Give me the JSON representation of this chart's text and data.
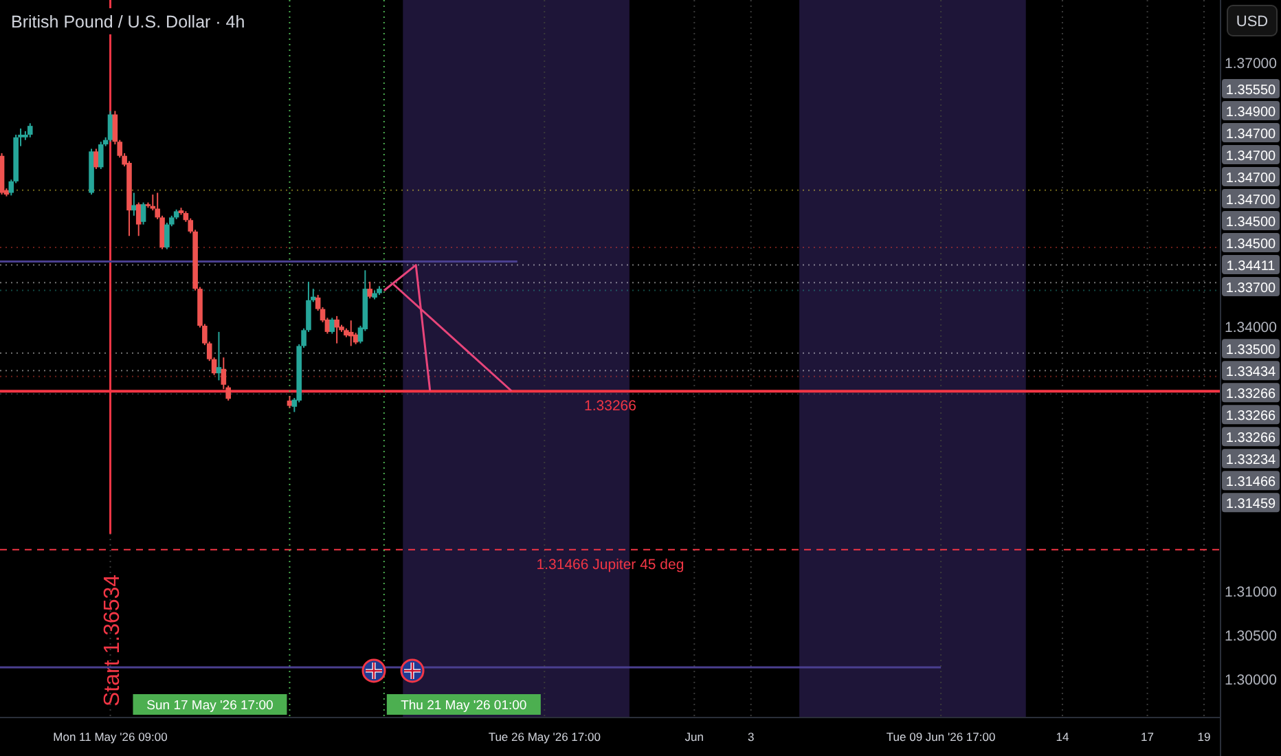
{
  "chart_data": {
    "type": "candlestick",
    "title": "British Pound / U.S. Dollar · 4h",
    "ylabel": "USD",
    "x": [
      "2026-05-07T13:00",
      "2026-05-07T17:00",
      "2026-05-07T21:00",
      "2026-05-08T01:00",
      "2026-05-08T05:00",
      "2026-05-08T09:00",
      "2026-05-08T13:00",
      "2026-05-10T17:00",
      "2026-05-10T21:00",
      "2026-05-11T01:00",
      "2026-05-11T05:00",
      "2026-05-11T09:00",
      "2026-05-11T13:00",
      "2026-05-11T17:00",
      "2026-05-11T21:00",
      "2026-05-12T01:00",
      "2026-05-12T05:00",
      "2026-05-12T09:00",
      "2026-05-12T13:00",
      "2026-05-12T17:00",
      "2026-05-12T21:00",
      "2026-05-13T01:00",
      "2026-05-13T05:00",
      "2026-05-13T09:00",
      "2026-05-13T13:00",
      "2026-05-13T17:00",
      "2026-05-13T21:00",
      "2026-05-14T01:00",
      "2026-05-14T05:00",
      "2026-05-14T09:00",
      "2026-05-14T13:00",
      "2026-05-14T17:00",
      "2026-05-14T21:00",
      "2026-05-15T01:00",
      "2026-05-15T05:00",
      "2026-05-15T09:00",
      "2026-05-15T13:00",
      "2026-05-17T17:00",
      "2026-05-17T21:00",
      "2026-05-18T01:00",
      "2026-05-18T05:00",
      "2026-05-18T09:00",
      "2026-05-18T13:00",
      "2026-05-18T17:00",
      "2026-05-18T21:00",
      "2026-05-19T01:00",
      "2026-05-19T05:00",
      "2026-05-19T09:00",
      "2026-05-19T13:00",
      "2026-05-19T17:00",
      "2026-05-19T21:00",
      "2026-05-20T01:00",
      "2026-05-20T05:00",
      "2026-05-20T09:00",
      "2026-05-20T13:00",
      "2026-05-20T17:00",
      "2026-05-20T21:00"
    ],
    "ohlc": [
      [
        1.3594,
        1.3597,
        1.355,
        1.3552
      ],
      [
        1.3555,
        1.3557,
        1.3548,
        1.355
      ],
      [
        1.3552,
        1.3567,
        1.3549,
        1.3565
      ],
      [
        1.3565,
        1.3618,
        1.3563,
        1.3615
      ],
      [
        1.3615,
        1.3625,
        1.3605,
        1.3618
      ],
      [
        1.3615,
        1.3622,
        1.3612,
        1.3618
      ],
      [
        1.3618,
        1.3631,
        1.3615,
        1.3628
      ],
      [
        1.3552,
        1.3602,
        1.355,
        1.3599
      ],
      [
        1.3599,
        1.3602,
        1.3579,
        1.3581
      ],
      [
        1.3581,
        1.361,
        1.3579,
        1.3607
      ],
      [
        1.3607,
        1.3615,
        1.3605,
        1.3612
      ],
      [
        1.3612,
        1.3645,
        1.361,
        1.3641
      ],
      [
        1.3641,
        1.3645,
        1.3607,
        1.361
      ],
      [
        1.361,
        1.3612,
        1.3592,
        1.3594
      ],
      [
        1.3594,
        1.3597,
        1.3582,
        1.3584
      ],
      [
        1.3586,
        1.3588,
        1.3503,
        1.3532
      ],
      [
        1.3532,
        1.3552,
        1.3526,
        1.3538
      ],
      [
        1.3539,
        1.3541,
        1.3503,
        1.3516
      ],
      [
        1.3519,
        1.3541,
        1.3516,
        1.3539
      ],
      [
        1.3539,
        1.3541,
        1.3535,
        1.3537
      ],
      [
        1.3537,
        1.355,
        1.3532,
        1.3534
      ],
      [
        1.3534,
        1.3552,
        1.3522,
        1.3524
      ],
      [
        1.3524,
        1.3526,
        1.3488,
        1.349
      ],
      [
        1.349,
        1.3518,
        1.3488,
        1.3516
      ],
      [
        1.3516,
        1.3526,
        1.3514,
        1.3524
      ],
      [
        1.3524,
        1.3533,
        1.3522,
        1.3531
      ],
      [
        1.3532,
        1.3535,
        1.3527,
        1.3529
      ],
      [
        1.3529,
        1.3531,
        1.3519,
        1.3521
      ],
      [
        1.3521,
        1.3523,
        1.3506,
        1.3508
      ],
      [
        1.3508,
        1.351,
        1.3441,
        1.3443
      ],
      [
        1.3443,
        1.3445,
        1.3399,
        1.3401
      ],
      [
        1.3401,
        1.3403,
        1.3379,
        1.3381
      ],
      [
        1.3381,
        1.3383,
        1.3361,
        1.3363
      ],
      [
        1.3363,
        1.3365,
        1.3345,
        1.3347
      ],
      [
        1.3347,
        1.3394,
        1.3339,
        1.3354
      ],
      [
        1.3352,
        1.3365,
        1.3329,
        1.3334
      ],
      [
        1.3331,
        1.3333,
        1.3316,
        1.3318
      ],
      [
        1.3316,
        1.3321,
        1.3308,
        1.331
      ],
      [
        1.3309,
        1.3319,
        1.3303,
        1.3317
      ],
      [
        1.3316,
        1.338,
        1.3314,
        1.3378
      ],
      [
        1.3378,
        1.3398,
        1.3376,
        1.3396
      ],
      [
        1.3396,
        1.3451,
        1.3394,
        1.343
      ],
      [
        1.343,
        1.3443,
        1.3428,
        1.3434
      ],
      [
        1.3433,
        1.3436,
        1.3418,
        1.342
      ],
      [
        1.342,
        1.3422,
        1.3405,
        1.3407
      ],
      [
        1.3408,
        1.341,
        1.3392,
        1.3394
      ],
      [
        1.3394,
        1.341,
        1.3392,
        1.3408
      ],
      [
        1.3408,
        1.3412,
        1.3381,
        1.3399
      ],
      [
        1.34,
        1.3402,
        1.3394,
        1.3396
      ],
      [
        1.3396,
        1.3398,
        1.3388,
        1.339
      ],
      [
        1.3394,
        1.3407,
        1.3378,
        1.3389
      ],
      [
        1.3391,
        1.3393,
        1.338,
        1.3382
      ],
      [
        1.3383,
        1.3401,
        1.3381,
        1.3399
      ],
      [
        1.3397,
        1.3464,
        1.3395,
        1.3443
      ],
      [
        1.3443,
        1.3451,
        1.3432,
        1.3434
      ],
      [
        1.3433,
        1.3441,
        1.3431,
        1.3438
      ],
      [
        1.3438,
        1.3446,
        1.3436,
        1.3443
      ]
    ],
    "colors": [
      "#ef5350",
      "#ef5350",
      "#26a69a",
      "#26a69a",
      "#26a69a",
      "#26a69a",
      "#26a69a",
      "#26a69a",
      "#ef5350",
      "#26a69a",
      "#26a69a",
      "#26a69a",
      "#ef5350",
      "#ef5350",
      "#ef5350",
      "#ef5350",
      "#26a69a",
      "#ef5350",
      "#26a69a",
      "#ef5350",
      "#ef5350",
      "#ef5350",
      "#ef5350",
      "#26a69a",
      "#26a69a",
      "#26a69a",
      "#ef5350",
      "#ef5350",
      "#ef5350",
      "#ef5350",
      "#ef5350",
      "#ef5350",
      "#ef5350",
      "#ef5350",
      "#26a69a",
      "#ef5350",
      "#ef5350",
      "#ef5350",
      "#26a69a",
      "#26a69a",
      "#26a69a",
      "#26a69a",
      "#26a69a",
      "#ef5350",
      "#ef5350",
      "#ef5350",
      "#26a69a",
      "#ef5350",
      "#ef5350",
      "#ef5350",
      "#ef5350",
      "#ef5350",
      "#26a69a",
      "#26a69a",
      "#ef5350",
      "#26a69a",
      "#26a69a"
    ],
    "series": [
      {
        "type": "line",
        "color": "#e8457a",
        "x": [
          "2026-05-21T01:00",
          "2026-05-22T04:00",
          "2026-05-22T16:00"
        ],
        "values": [
          1.3441,
          1.347,
          1.3327
        ]
      },
      {
        "type": "line",
        "color": "#e8457a",
        "x": [
          "2026-05-21T09:00",
          "2026-05-25T13:00"
        ],
        "values": [
          1.3448,
          1.3327
        ]
      },
      {
        "type": "line",
        "color": "#4a3f8f",
        "x": [
          "2026-05-07T11:30",
          "2026-05-25T18:00"
        ],
        "values": [
          1.3474,
          1.3474
        ]
      },
      {
        "type": "line",
        "color": "#4a3f8f",
        "x": [
          "2026-05-07T11:30",
          "2026-06-09T17:00"
        ],
        "values": [
          1.3013,
          1.3013
        ]
      }
    ],
    "xlim": [
      "2026-05-07T11:30",
      "2026-06-19T14:00"
    ],
    "ylim": [
      1.2956,
      1.3771
    ],
    "xticks": [
      {
        "value": "2026-05-11T09:00",
        "label": "Mon 11 May '26 09:00"
      },
      {
        "value": "2026-05-26T17:00",
        "label": "Tue 26 May '26 17:00"
      },
      {
        "value": "2026-06-01",
        "label": "Jun"
      },
      {
        "value": "2026-06-03",
        "label": "3"
      },
      {
        "value": "2026-06-09T17:00",
        "label": "Tue 09 Jun '26 17:00"
      },
      {
        "value": "2026-06-14",
        "label": "14"
      },
      {
        "value": "2026-06-17",
        "label": "17"
      },
      {
        "value": "2026-06-19",
        "label": "19"
      }
    ],
    "yticks": [
      {
        "value": 1.37,
        "label": "1.37000"
      },
      {
        "value": 1.34,
        "label": "1.34000"
      },
      {
        "value": 1.31,
        "label": "1.31000"
      },
      {
        "value": 1.305,
        "label": "1.30500"
      },
      {
        "value": 1.3,
        "label": "1.30000"
      }
    ],
    "grid": "x",
    "bands": [
      {
        "axis": "x",
        "from": "2026-05-21T17:00",
        "to": "2026-05-29T17:00",
        "color": "#1e1538"
      },
      {
        "axis": "x",
        "from": "2026-06-04T17:00",
        "to": "2026-06-12T17:00",
        "color": "#1e1538"
      }
    ],
    "ref_lines": [
      {
        "axis": "x",
        "value": "2026-05-11T09:00",
        "label": "Start 1.36534",
        "color": "#f23645",
        "line_style": "solid"
      },
      {
        "axis": "x",
        "value": "2026-05-17T17:00",
        "label": "Sun 17 May '26 17:00",
        "color": "#4caf50",
        "line_style": "dotted"
      },
      {
        "axis": "x",
        "value": "2026-05-21T01:00",
        "label": "Thu 21 May '26 01:00",
        "color": "#4caf50",
        "line_style": "dotted"
      },
      {
        "axis": "y",
        "value": 1.3555,
        "color": "#ffeb3b",
        "line_style": "dotted"
      },
      {
        "axis": "y",
        "value": 1.349,
        "color": "#f44336",
        "line_style": "dotted"
      },
      {
        "axis": "y",
        "value": 1.347,
        "color": "#ffffff",
        "line_style": "dotted"
      },
      {
        "axis": "y",
        "value": 1.345,
        "color": "#ffffff",
        "line_style": "dotted"
      },
      {
        "axis": "y",
        "value": 1.34411,
        "color": "#26a69a",
        "line_style": "dotted"
      },
      {
        "axis": "y",
        "value": 1.337,
        "color": "#ffffff",
        "line_style": "dotted"
      },
      {
        "axis": "y",
        "value": 1.335,
        "color": "#ffffff",
        "line_style": "dotted"
      },
      {
        "axis": "y",
        "value": 1.33434,
        "color": "#f44336",
        "line_style": "dotted"
      },
      {
        "axis": "y",
        "value": 1.33266,
        "label": "1.33266",
        "color": "#f23645",
        "line_style": "solid"
      },
      {
        "axis": "y",
        "value": 1.33234,
        "color": "#5d606b",
        "line_style": "dotted"
      },
      {
        "axis": "y",
        "value": 1.31466,
        "label": "1.31466 Jupiter 45 deg",
        "color": "#f23645",
        "line_style": "dashed"
      }
    ],
    "annotations": [
      "1.35550",
      "1.34900",
      "1.34700",
      "1.34700",
      "1.34700",
      "1.34700",
      "1.34500",
      "1.34500",
      "1.34411",
      "1.33700",
      "1.33500",
      "1.33434",
      "1.33266",
      "1.33266",
      "1.33266",
      "1.33234",
      "1.31466",
      "1.31459"
    ]
  }
}
